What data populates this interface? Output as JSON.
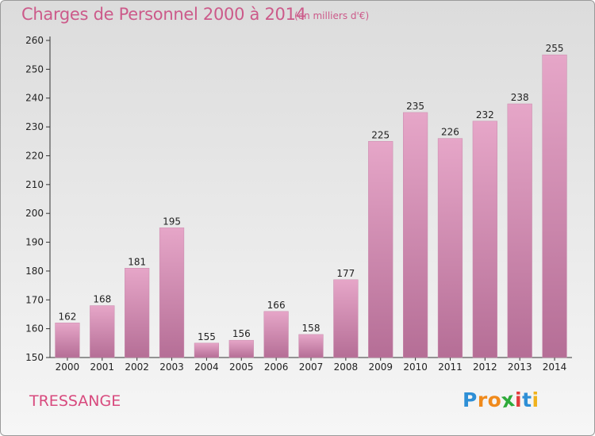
{
  "header": {
    "title": "Charges de Personnel 2000 à 2014",
    "unit": "(en milliers d'€)"
  },
  "footer": {
    "commune": "TRESSANGE",
    "logo": "Proxiti",
    "logo_letters": [
      "P",
      "r",
      "o",
      "x",
      "i",
      "t",
      "i"
    ],
    "logo_colors": [
      "#2e8fd6",
      "#f08a1c",
      "#f08a1c",
      "#2eaa3a",
      "#e23b3b",
      "#2e8fd6",
      "#f0b21c"
    ]
  },
  "colors": {
    "bar_fill_top": "#e6a6c8",
    "bar_fill_bottom": "#b56e96",
    "title": "#cc5a8a",
    "commune": "#d84a7e"
  },
  "chart_data": {
    "type": "bar",
    "categories": [
      "2000",
      "2001",
      "2002",
      "2003",
      "2004",
      "2005",
      "2006",
      "2007",
      "2008",
      "2009",
      "2010",
      "2011",
      "2012",
      "2013",
      "2014"
    ],
    "values": [
      162,
      168,
      181,
      195,
      155,
      156,
      166,
      158,
      177,
      225,
      235,
      226,
      232,
      238,
      255
    ],
    "ylim": [
      150,
      260
    ],
    "yticks": [
      150,
      160,
      170,
      180,
      190,
      200,
      210,
      220,
      230,
      240,
      250,
      260
    ],
    "grid": false
  }
}
